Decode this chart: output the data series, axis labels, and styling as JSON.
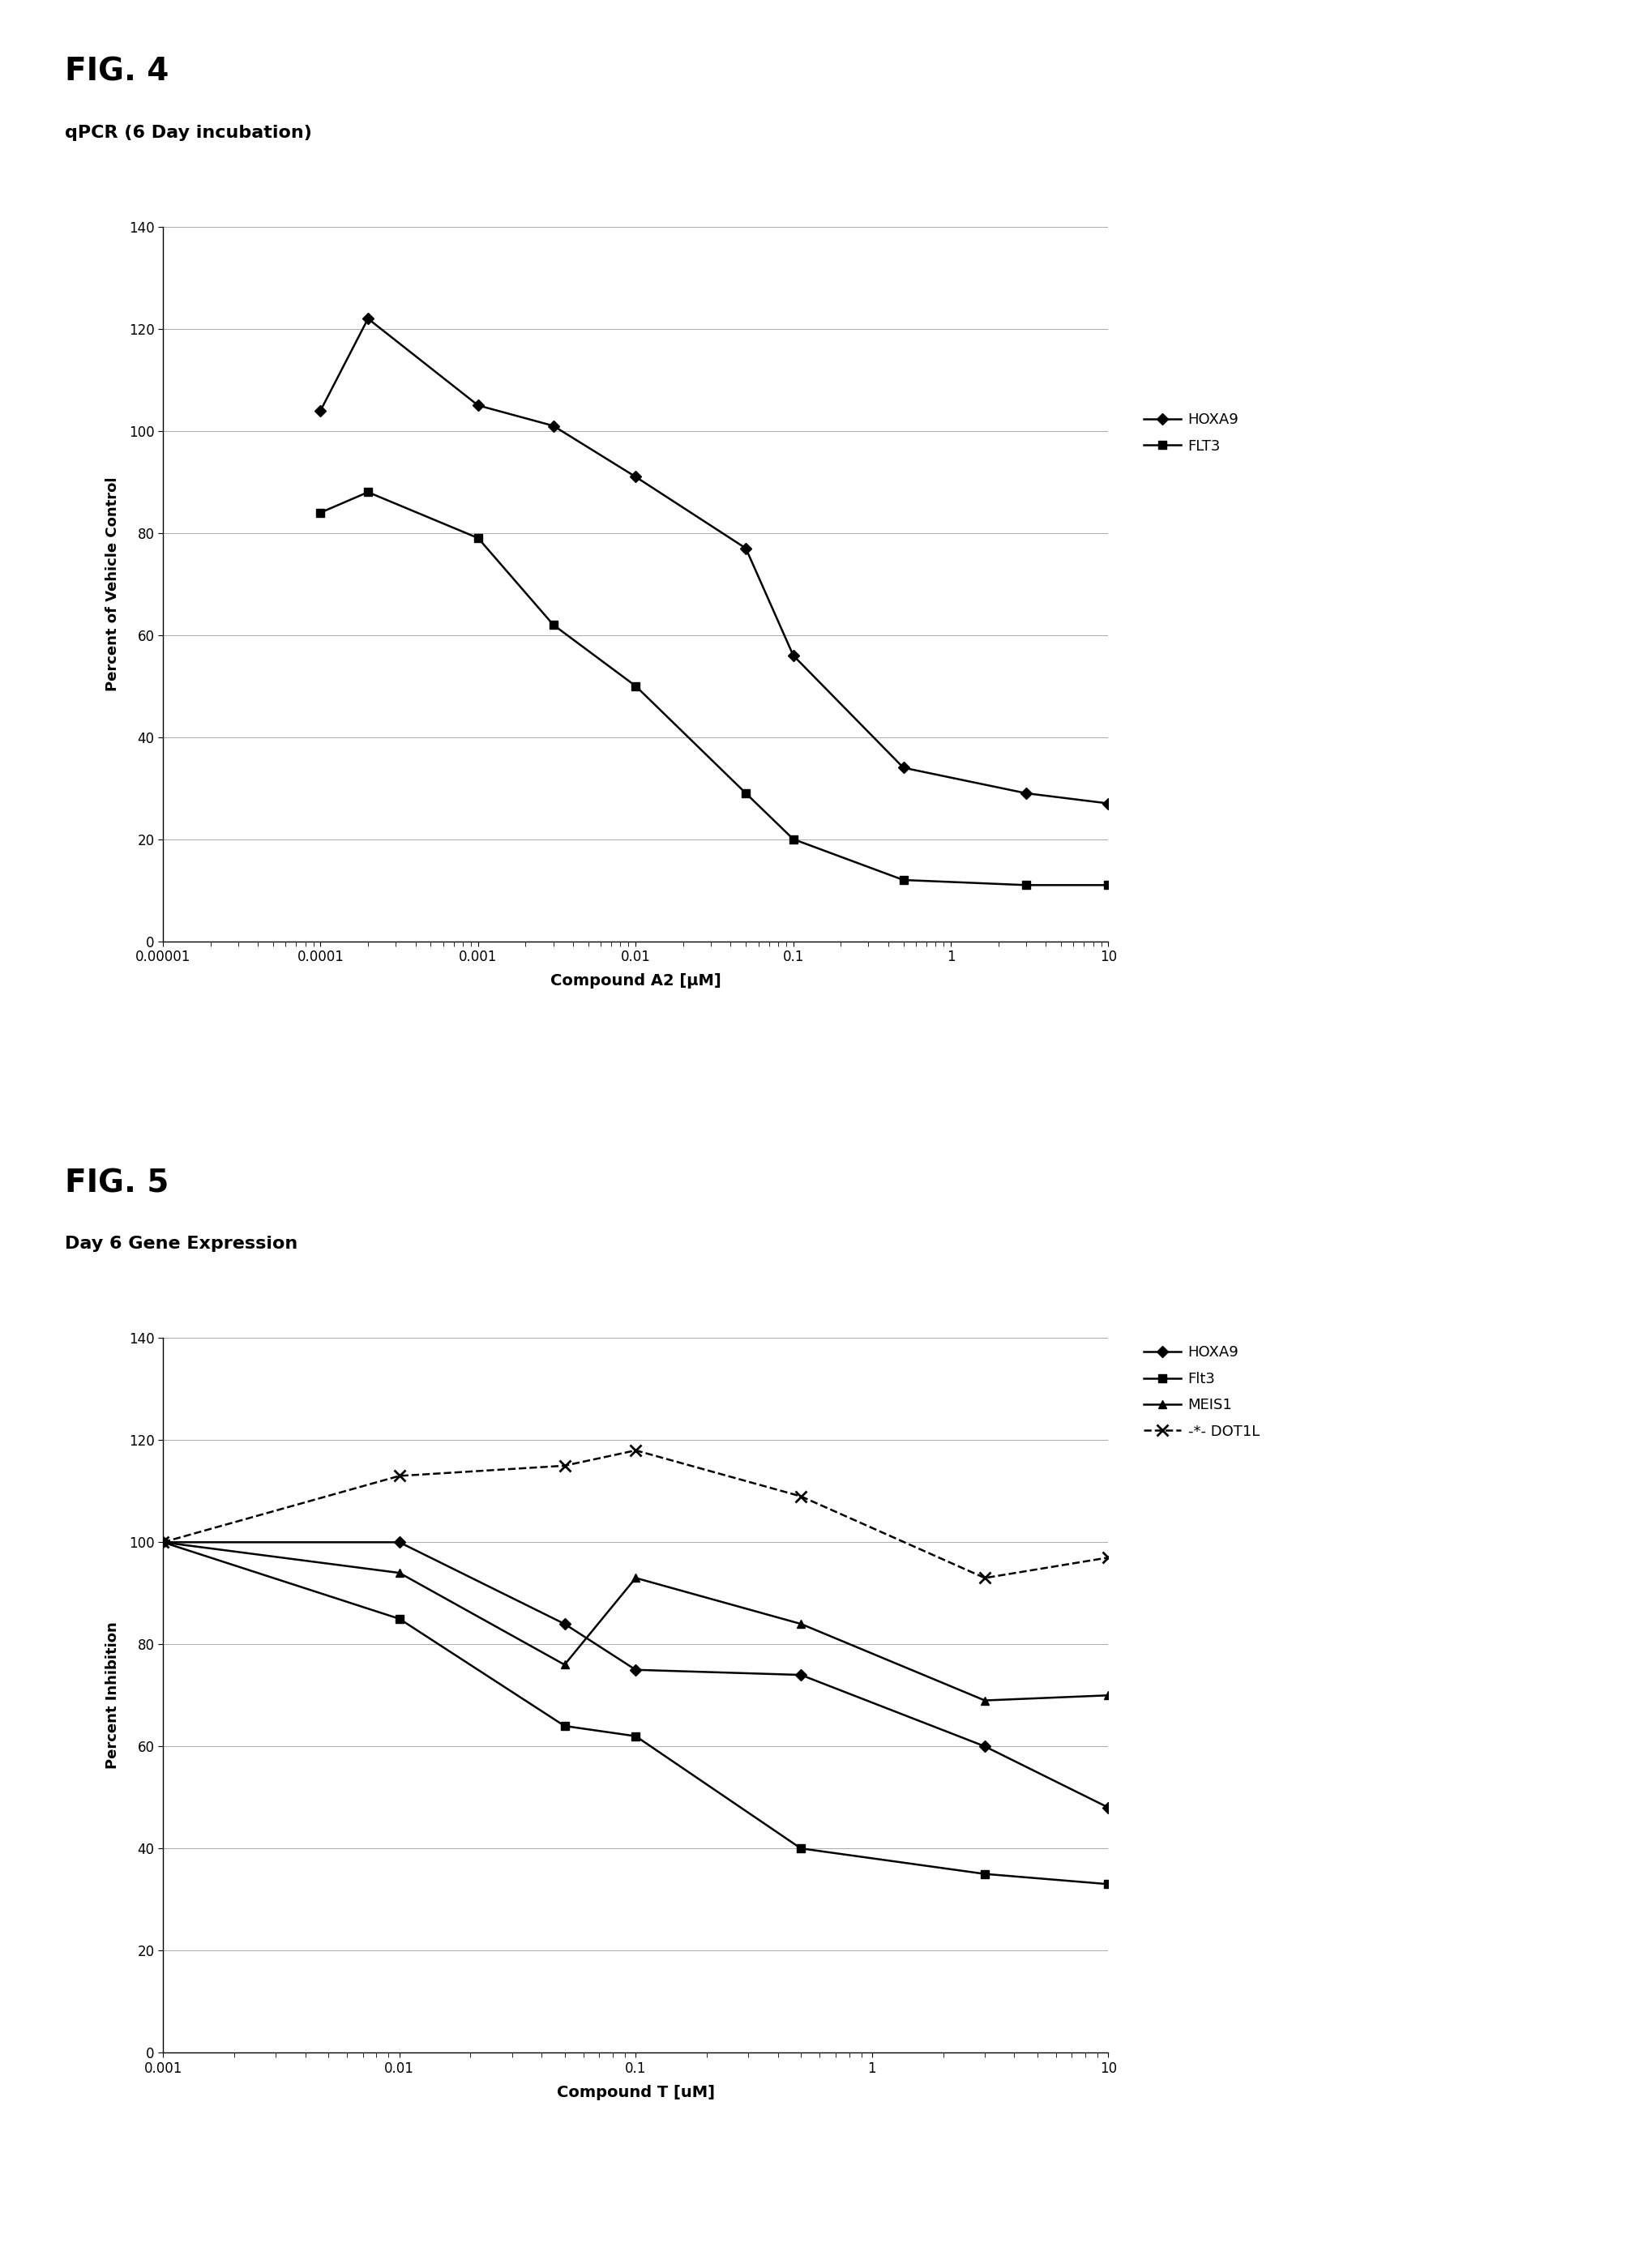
{
  "fig4_title": "FIG. 4",
  "fig4_subtitle": "qPCR (6 Day incubation)",
  "fig4_xlabel": "Compound A2 [μM]",
  "fig4_ylabel": "Percent of Vehicle Control",
  "fig4_xlim": [
    1e-05,
    10
  ],
  "fig4_ylim": [
    0,
    140
  ],
  "fig4_yticks": [
    0,
    20,
    40,
    60,
    80,
    100,
    120,
    140
  ],
  "fig4_xticks": [
    1e-05,
    0.0001,
    0.001,
    0.01,
    0.1,
    1,
    10
  ],
  "fig4_xtick_labels": [
    "0.00001",
    "0.0001",
    "0.001",
    "0.01",
    "0.1",
    "1",
    "10"
  ],
  "fig4_hoxa9_x": [
    0.0001,
    0.0002,
    0.001,
    0.003,
    0.01,
    0.05,
    0.1,
    0.5,
    3,
    10
  ],
  "fig4_hoxa9_y": [
    104,
    122,
    105,
    101,
    91,
    77,
    56,
    34,
    29,
    27
  ],
  "fig4_flt3_x": [
    0.0001,
    0.0002,
    0.001,
    0.003,
    0.01,
    0.05,
    0.1,
    0.5,
    3,
    10
  ],
  "fig4_flt3_y": [
    84,
    88,
    79,
    62,
    50,
    29,
    20,
    12,
    11,
    11
  ],
  "fig5_title": "FIG. 5",
  "fig5_subtitle": "Day 6 Gene Expression",
  "fig5_xlabel": "Compound T [uM]",
  "fig5_ylabel": "Percent Inhibition",
  "fig5_xlim": [
    0.001,
    10
  ],
  "fig5_ylim": [
    0,
    140
  ],
  "fig5_yticks": [
    0,
    20,
    40,
    60,
    80,
    100,
    120,
    140
  ],
  "fig5_xticks": [
    0.001,
    0.01,
    0.1,
    1,
    10
  ],
  "fig5_xtick_labels": [
    "0.001",
    "0.01",
    "0.1",
    "1",
    "10"
  ],
  "fig5_hoxa9_x": [
    0.001,
    0.01,
    0.05,
    0.1,
    0.5,
    3,
    10
  ],
  "fig5_hoxa9_y": [
    100,
    100,
    84,
    75,
    74,
    60,
    48
  ],
  "fig5_flt3_x": [
    0.001,
    0.01,
    0.05,
    0.1,
    0.5,
    3,
    10
  ],
  "fig5_flt3_y": [
    100,
    85,
    64,
    62,
    40,
    35,
    33
  ],
  "fig5_meis1_x": [
    0.001,
    0.01,
    0.05,
    0.1,
    0.5,
    3,
    10
  ],
  "fig5_meis1_y": [
    100,
    94,
    76,
    93,
    84,
    69,
    70
  ],
  "fig5_dot1l_x": [
    0.001,
    0.01,
    0.05,
    0.1,
    0.5,
    3,
    10
  ],
  "fig5_dot1l_y": [
    100,
    113,
    115,
    118,
    109,
    93,
    97
  ],
  "color_black": "#000000",
  "background": "#ffffff",
  "line_width": 1.8,
  "marker_size": 7,
  "fig4_legend_hoxa9": "HOXA9",
  "fig4_legend_flt3": "FLT3",
  "fig5_legend_hoxa9": "HOXA9",
  "fig5_legend_flt3": "Flt3",
  "fig5_legend_meis1": "MEIS1",
  "fig5_legend_dot1l": "-*- DOT1L"
}
